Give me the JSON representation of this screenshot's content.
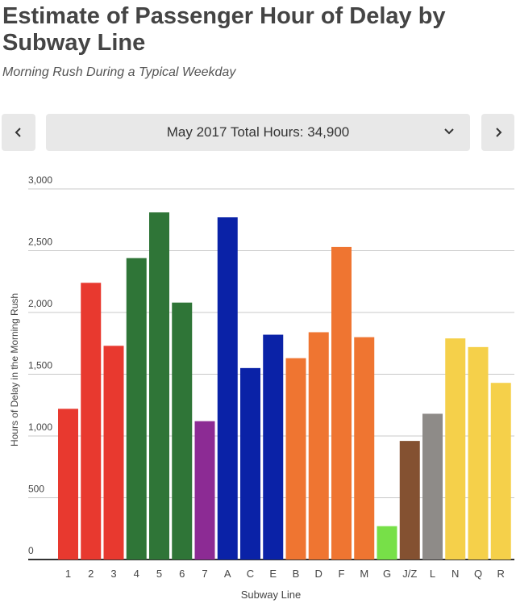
{
  "header": {
    "title": "Estimate of Passenger Hour of Delay by Subway Line",
    "subtitle": "Morning Rush During a Typical Weekday"
  },
  "controls": {
    "selected_period": "May 2017 Total Hours: 34,900",
    "prev_icon": "chevron-left-icon",
    "next_icon": "chevron-right-icon",
    "dropdown_icon": "chevron-down-icon"
  },
  "chart_data": {
    "type": "bar",
    "title": "",
    "xlabel": "Subway Line",
    "ylabel": "Hours of Delay in the Morning Rush",
    "ylim": [
      0,
      3000
    ],
    "yticks": [
      0,
      500,
      1000,
      1500,
      2000,
      2500,
      3000
    ],
    "ytick_labels": [
      "0",
      "500",
      "1,000",
      "1,500",
      "2,000",
      "2,500",
      "3,000"
    ],
    "categories": [
      "1",
      "2",
      "3",
      "4",
      "5",
      "6",
      "7",
      "A",
      "C",
      "E",
      "B",
      "D",
      "F",
      "M",
      "G",
      "J/Z",
      "L",
      "N",
      "Q",
      "R"
    ],
    "values": [
      1220,
      2240,
      1730,
      2440,
      2810,
      2080,
      1120,
      2770,
      1550,
      1820,
      1630,
      1840,
      2530,
      1800,
      270,
      960,
      1180,
      1790,
      1720,
      1430
    ],
    "colors": [
      "#e8392f",
      "#e8392f",
      "#e8392f",
      "#2f7537",
      "#2f7537",
      "#2f7537",
      "#8c2b94",
      "#0a22a7",
      "#0a22a7",
      "#0a22a7",
      "#ef7531",
      "#ef7531",
      "#ef7531",
      "#ef7531",
      "#77e048",
      "#845131",
      "#8e8b88",
      "#f5d04a",
      "#f5d04a",
      "#f5d04a"
    ],
    "grid": true
  }
}
